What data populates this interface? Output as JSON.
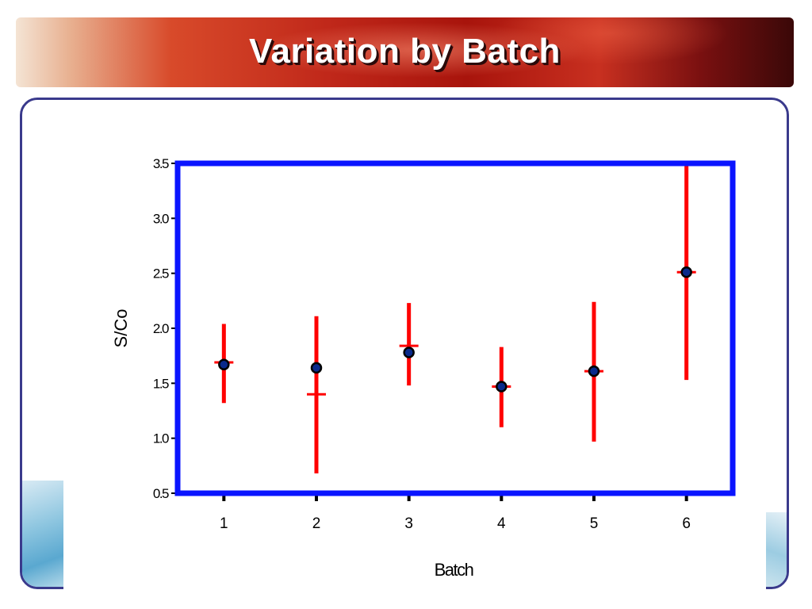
{
  "slide": {
    "title": "Variation by Batch"
  },
  "colors": {
    "plot_border": "#0a14ff",
    "error_bar": "#ff0000",
    "marker": "#0a2a8c"
  },
  "chart_data": {
    "type": "scatter",
    "xlabel": "Batch",
    "ylabel": "S/Co",
    "categories": [
      "1",
      "2",
      "3",
      "4",
      "5",
      "6"
    ],
    "xlim": [
      0.5,
      6.5
    ],
    "ylim": [
      0.5,
      3.5
    ],
    "yticks": [
      "0.5",
      "1.0",
      "1.5",
      "2.0",
      "2.5",
      "3.0",
      "3.5"
    ],
    "grid": false,
    "points": [
      {
        "batch": "1",
        "value": 1.67,
        "low": 1.32,
        "high": 2.04,
        "median": 1.69
      },
      {
        "batch": "2",
        "value": 1.64,
        "low": 0.68,
        "high": 2.11,
        "median": 1.4
      },
      {
        "batch": "3",
        "value": 1.78,
        "low": 1.48,
        "high": 2.23,
        "median": 1.84
      },
      {
        "batch": "4",
        "value": 1.47,
        "low": 1.1,
        "high": 1.83,
        "median": 1.47
      },
      {
        "batch": "5",
        "value": 1.61,
        "low": 0.97,
        "high": 2.24,
        "median": 1.61
      },
      {
        "batch": "6",
        "value": 2.51,
        "low": 1.53,
        "high": 3.5,
        "median": 2.51
      }
    ]
  }
}
